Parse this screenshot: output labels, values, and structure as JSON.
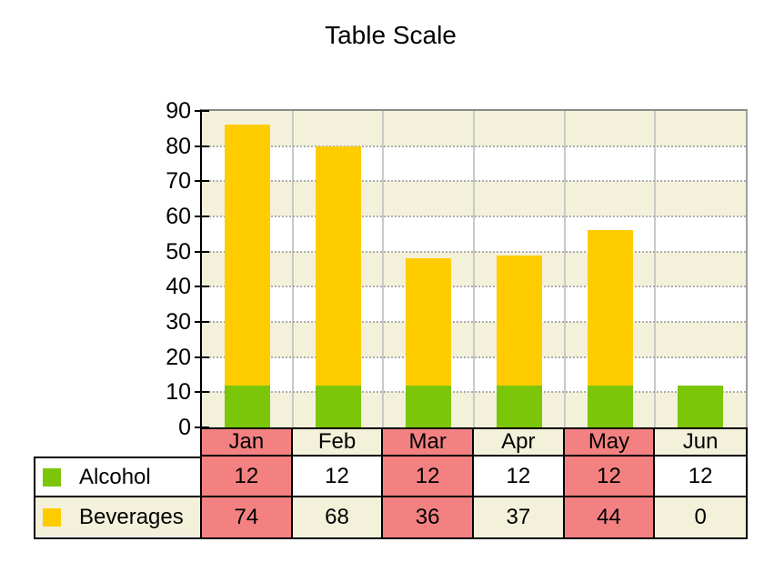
{
  "title": "Table Scale",
  "chart_data": {
    "type": "bar",
    "stacked": true,
    "categories": [
      "Jan",
      "Feb",
      "Mar",
      "Apr",
      "May",
      "Jun"
    ],
    "series": [
      {
        "name": "Alcohol",
        "color": "#7cc609",
        "values": [
          12,
          12,
          12,
          12,
          12,
          12
        ]
      },
      {
        "name": "Beverages",
        "color": "#ffcc00",
        "values": [
          74,
          68,
          36,
          37,
          44,
          0
        ]
      }
    ],
    "ylim": [
      0,
      90
    ],
    "y_tick_step": 10,
    "y_tick_labels": [
      "0",
      "10",
      "20",
      "30",
      "40",
      "50",
      "60",
      "70",
      "80",
      "90"
    ],
    "grid": {
      "horizontal": "dotted",
      "vertical": "solid",
      "background_bands": true
    },
    "legend_position": "table-left"
  },
  "table": {
    "header_row": [
      "Jan",
      "Feb",
      "Mar",
      "Apr",
      "May",
      "Jun"
    ],
    "rows": [
      {
        "label": "Alcohol",
        "values": [
          "12",
          "12",
          "12",
          "12",
          "12",
          "12"
        ]
      },
      {
        "label": "Beverages",
        "values": [
          "74",
          "68",
          "36",
          "37",
          "44",
          "0"
        ]
      }
    ],
    "highlighted_columns": [
      "Jan",
      "Mar",
      "May"
    ]
  },
  "colors": {
    "highlight_salmon": "#f38181",
    "cream": "#f3f1da",
    "white": "#ffffff",
    "band_cream": "#f3f1da",
    "vertical_gridline": "#c9c9c9",
    "horizontal_gridline": "#acacac",
    "plot_border_gray": "#8a8a8a",
    "axis_black": "#000000"
  }
}
